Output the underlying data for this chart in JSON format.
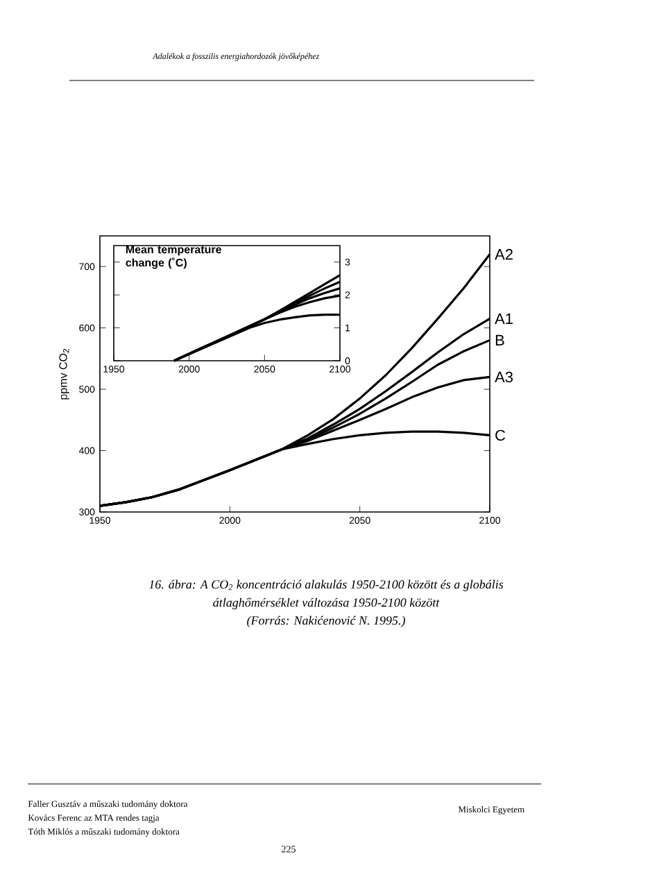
{
  "chart_data": [
    {
      "type": "line",
      "ylabel": "ppmv CO$_{2}$",
      "legend": "right",
      "xlim": [
        1950,
        2100
      ],
      "ylim": [
        300,
        750
      ],
      "xticks": [
        1950,
        2000,
        2050,
        2100
      ],
      "yticks": [
        300,
        400,
        500,
        600,
        700
      ],
      "x": [
        1950,
        1960,
        1970,
        1980,
        1990,
        2000,
        2010,
        2020,
        2030,
        2040,
        2050,
        2060,
        2070,
        2080,
        2090,
        2100
      ],
      "series": [
        {
          "name": "A2",
          "color": "#000000",
          "values": [
            310,
            316,
            324,
            336,
            352,
            368,
            385,
            402,
            425,
            452,
            485,
            523,
            567,
            615,
            665,
            720
          ]
        },
        {
          "name": "A1",
          "color": "#000000",
          "values": [
            310,
            316,
            324,
            336,
            352,
            368,
            385,
            402,
            420,
            443,
            468,
            497,
            528,
            560,
            590,
            615
          ]
        },
        {
          "name": "B",
          "color": "#000000",
          "values": [
            310,
            316,
            324,
            336,
            352,
            368,
            385,
            402,
            418,
            438,
            460,
            485,
            512,
            540,
            562,
            580
          ]
        },
        {
          "name": "A3",
          "color": "#000000",
          "values": [
            310,
            316,
            324,
            336,
            352,
            368,
            385,
            402,
            416,
            433,
            450,
            468,
            487,
            503,
            515,
            520
          ]
        },
        {
          "name": "C",
          "color": "#000000",
          "values": [
            310,
            316,
            324,
            336,
            352,
            368,
            385,
            402,
            411,
            419,
            425,
            429,
            431,
            431,
            429,
            425
          ]
        }
      ],
      "annotations": [
        "Adalékok a fosszilis energiahordozók jövőképéhez",
        "16. ábra: A CO$_{2}$ koncentráció alakulás 1950-2100 között és a globális",
        "átlaghőmérséklet változása 1950-2100 között",
        "(Forrás: Nakićenović N. 1995.)",
        "Faller Gusztáv a műszaki tudomány doktora",
        "Kovács Ferenc az MTA rendes tagja",
        "Tóth Miklós a műszaki tudomány doktora",
        "Miskolci Egyetem",
        "225"
      ]
    },
    {
      "type": "line",
      "title": "Mean temperature change (˚C)",
      "xlim": [
        1950,
        2100
      ],
      "ylim": [
        0,
        3.5
      ],
      "xticks": [
        1950,
        2000,
        2050,
        2100
      ],
      "yticks": [
        0,
        1,
        2,
        3
      ],
      "x": [
        1990,
        2000,
        2010,
        2020,
        2030,
        2040,
        2050,
        2060,
        2070,
        2080,
        2090,
        2100
      ],
      "series": [
        {
          "color": "#000000",
          "values": [
            0,
            0.21,
            0.42,
            0.63,
            0.84,
            1.05,
            1.26,
            1.52,
            1.79,
            2.06,
            2.33,
            2.6
          ]
        },
        {
          "color": "#000000",
          "values": [
            0,
            0.21,
            0.42,
            0.63,
            0.84,
            1.05,
            1.26,
            1.5,
            1.74,
            1.98,
            2.2,
            2.4
          ]
        },
        {
          "color": "#000000",
          "values": [
            0,
            0.21,
            0.42,
            0.63,
            0.84,
            1.05,
            1.26,
            1.48,
            1.7,
            1.9,
            2.06,
            2.2
          ]
        },
        {
          "color": "#000000",
          "values": [
            0,
            0.21,
            0.42,
            0.63,
            0.84,
            1.05,
            1.26,
            1.46,
            1.64,
            1.78,
            1.9,
            1.98
          ]
        },
        {
          "color": "#000000",
          "values": [
            0,
            0.2,
            0.4,
            0.6,
            0.8,
            1.0,
            1.15,
            1.25,
            1.32,
            1.38,
            1.4,
            1.4
          ]
        }
      ]
    }
  ]
}
